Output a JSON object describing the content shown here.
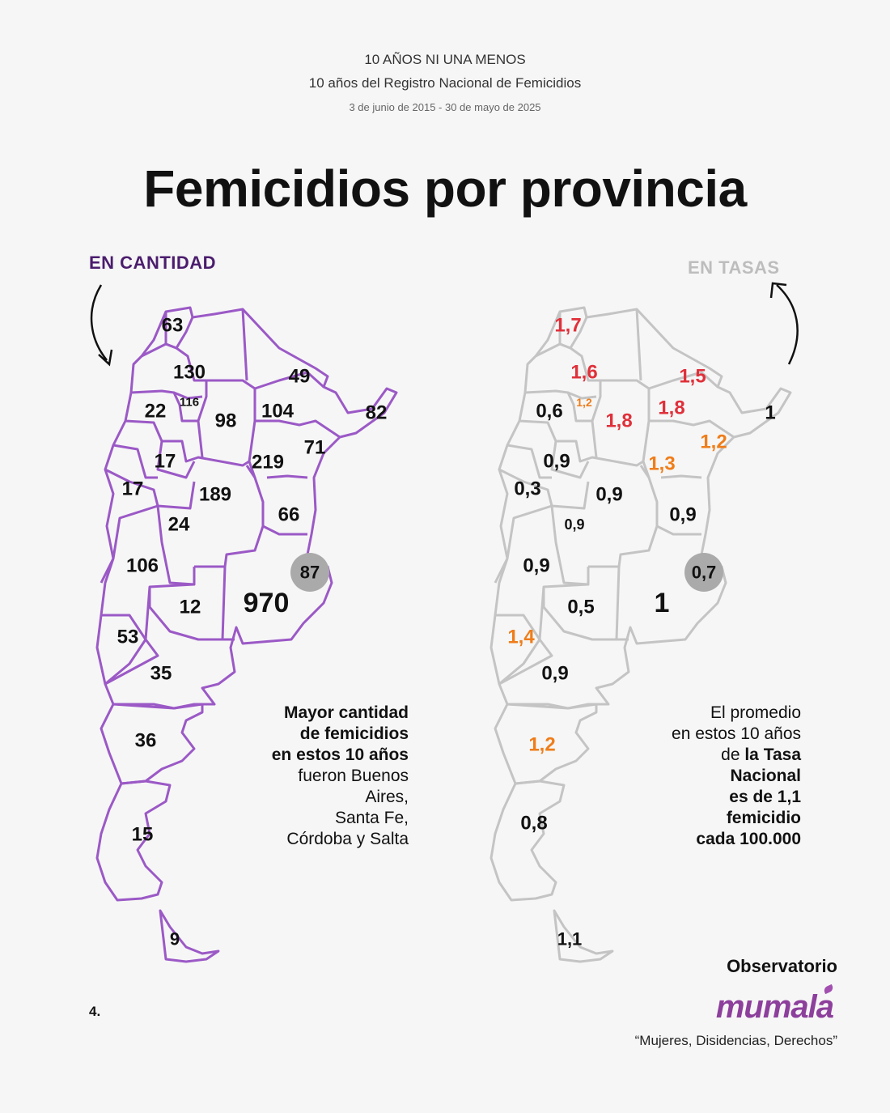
{
  "header": {
    "line1": "10 AÑOS NI UNA MENOS",
    "line2": "10 años del Registro Nacional de Femicidios",
    "dates": "3 de junio de 2015 - 30 de mayo de 2025"
  },
  "title": "Femicidios por provincia",
  "left_map": {
    "heading": "EN CANTIDAD",
    "color": "#9b59c6",
    "labels": [
      {
        "id": "jujuy",
        "text": "63"
      },
      {
        "id": "salta",
        "text": "130"
      },
      {
        "id": "tucuman",
        "text": "116"
      },
      {
        "id": "catamarca",
        "text": "22"
      },
      {
        "id": "santiago",
        "text": "98"
      },
      {
        "id": "formosa",
        "text": "49"
      },
      {
        "id": "chaco",
        "text": "104"
      },
      {
        "id": "misiones",
        "text": "82"
      },
      {
        "id": "larioja",
        "text": "17"
      },
      {
        "id": "sanjuan",
        "text": "17"
      },
      {
        "id": "santafe",
        "text": "219"
      },
      {
        "id": "corrientes",
        "text": "71"
      },
      {
        "id": "cordoba",
        "text": "189"
      },
      {
        "id": "entrerios",
        "text": "66"
      },
      {
        "id": "sanluis",
        "text": "24"
      },
      {
        "id": "mendoza",
        "text": "106"
      },
      {
        "id": "caba",
        "text": "87"
      },
      {
        "id": "lapampa",
        "text": "12"
      },
      {
        "id": "buenosaires",
        "text": "970"
      },
      {
        "id": "neuquen",
        "text": "53"
      },
      {
        "id": "rionegro",
        "text": "35"
      },
      {
        "id": "chubut",
        "text": "36"
      },
      {
        "id": "santacruz",
        "text": "15"
      },
      {
        "id": "tdf",
        "text": "9"
      }
    ],
    "note": {
      "bold1": "Mayor cantidad",
      "bold2": "de femicidios",
      "bold3": "en estos 10 años",
      "rest1": "fueron Buenos",
      "rest2": "Aires,",
      "rest3": "Santa Fe,",
      "rest4": "Córdoba y Salta"
    }
  },
  "right_map": {
    "heading": "EN TASAS",
    "color": "#c4c4c4",
    "colors": {
      "high": "#e0303a",
      "mid": "#ef7d1a",
      "base": "#111111"
    },
    "labels": [
      {
        "id": "jujuy",
        "text": "1,7",
        "level": "high"
      },
      {
        "id": "salta",
        "text": "1,6",
        "level": "high"
      },
      {
        "id": "tucuman",
        "text": "1,2",
        "level": "mid"
      },
      {
        "id": "catamarca",
        "text": "0,6",
        "level": "base"
      },
      {
        "id": "santiago",
        "text": "1,8",
        "level": "high"
      },
      {
        "id": "formosa",
        "text": "1,5",
        "level": "high"
      },
      {
        "id": "chaco",
        "text": "1,8",
        "level": "high"
      },
      {
        "id": "misiones",
        "text": "1",
        "level": "base"
      },
      {
        "id": "larioja",
        "text": "0,9",
        "level": "base"
      },
      {
        "id": "sanjuan",
        "text": "0,3",
        "level": "base"
      },
      {
        "id": "santafe",
        "text": "1,3",
        "level": "mid"
      },
      {
        "id": "corrientes",
        "text": "1,2",
        "level": "mid"
      },
      {
        "id": "cordoba",
        "text": "0,9",
        "level": "base"
      },
      {
        "id": "entrerios",
        "text": "0,9",
        "level": "base"
      },
      {
        "id": "sanluis",
        "text": "0,9",
        "level": "base"
      },
      {
        "id": "mendoza",
        "text": "0,9",
        "level": "base"
      },
      {
        "id": "caba",
        "text": "0,7",
        "level": "base"
      },
      {
        "id": "lapampa",
        "text": "0,5",
        "level": "base"
      },
      {
        "id": "buenosaires",
        "text": "1",
        "level": "base"
      },
      {
        "id": "neuquen",
        "text": "1,4",
        "level": "mid"
      },
      {
        "id": "rionegro",
        "text": "0,9",
        "level": "base"
      },
      {
        "id": "chubut",
        "text": "1,2",
        "level": "mid"
      },
      {
        "id": "santacruz",
        "text": "0,8",
        "level": "base"
      },
      {
        "id": "tdf",
        "text": "1,1",
        "level": "base"
      }
    ],
    "note": {
      "line1": "El promedio",
      "line2": "en estos 10 años",
      "line3a": "de ",
      "line3b": "la Tasa",
      "line4": "Nacional",
      "line5": "es de 1,1",
      "line6": "femicidio",
      "line7": "cada 100.000"
    }
  },
  "footer": {
    "page": "4.",
    "observatorio": "Observatorio",
    "brand": "mumala",
    "tagline": "“Mujeres, Disidencias, Derechos”"
  }
}
